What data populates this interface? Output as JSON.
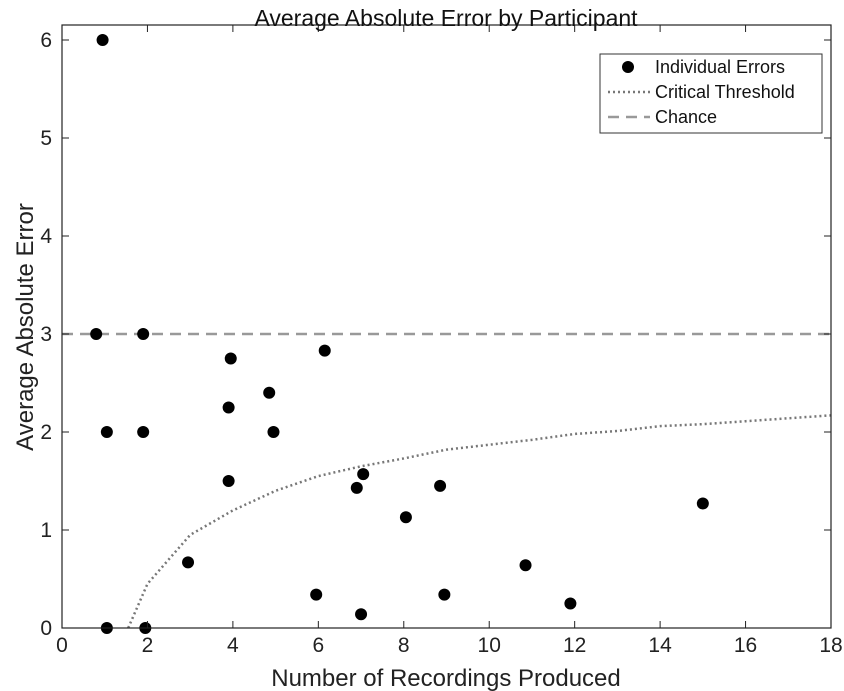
{
  "chart_data": {
    "type": "scatter",
    "title": "Average Absolute Error by Participant",
    "xlabel": "Number of Recordings Produced",
    "ylabel": "Average Absolute Error",
    "xlim": [
      0,
      18
    ],
    "ylim": [
      0,
      6
    ],
    "xticks": [
      0,
      2,
      4,
      6,
      8,
      10,
      12,
      14,
      16,
      18
    ],
    "yticks": [
      0,
      1,
      2,
      3,
      4,
      5,
      6
    ],
    "grid": false,
    "legend_position": "top-right",
    "series": [
      {
        "name": "Individual Errors",
        "style": "scatter",
        "color": "#000000",
        "points": [
          {
            "x": 0.95,
            "y": 6.0
          },
          {
            "x": 0.8,
            "y": 3.0
          },
          {
            "x": 1.9,
            "y": 3.0
          },
          {
            "x": 1.05,
            "y": 2.0
          },
          {
            "x": 1.9,
            "y": 2.0
          },
          {
            "x": 1.05,
            "y": 0.0
          },
          {
            "x": 1.95,
            "y": 0.0
          },
          {
            "x": 3.95,
            "y": 2.75
          },
          {
            "x": 3.9,
            "y": 2.25
          },
          {
            "x": 3.9,
            "y": 1.5
          },
          {
            "x": 2.95,
            "y": 0.67
          },
          {
            "x": 4.85,
            "y": 2.4
          },
          {
            "x": 4.95,
            "y": 2.0
          },
          {
            "x": 6.15,
            "y": 2.83
          },
          {
            "x": 5.95,
            "y": 0.34
          },
          {
            "x": 6.9,
            "y": 1.43
          },
          {
            "x": 7.05,
            "y": 1.57
          },
          {
            "x": 7.0,
            "y": 0.14
          },
          {
            "x": 8.05,
            "y": 1.13
          },
          {
            "x": 8.85,
            "y": 1.45
          },
          {
            "x": 8.95,
            "y": 0.34
          },
          {
            "x": 10.85,
            "y": 0.64
          },
          {
            "x": 11.9,
            "y": 0.25
          },
          {
            "x": 15.0,
            "y": 1.27
          }
        ]
      },
      {
        "name": "Critical Threshold",
        "style": "dotted-line",
        "color": "#777777",
        "points": [
          {
            "x": 1.55,
            "y": 0.0
          },
          {
            "x": 2.0,
            "y": 0.45
          },
          {
            "x": 3.0,
            "y": 0.95
          },
          {
            "x": 4.0,
            "y": 1.2
          },
          {
            "x": 5.0,
            "y": 1.4
          },
          {
            "x": 6.0,
            "y": 1.55
          },
          {
            "x": 7.0,
            "y": 1.65
          },
          {
            "x": 8.0,
            "y": 1.73
          },
          {
            "x": 9.0,
            "y": 1.82
          },
          {
            "x": 10.0,
            "y": 1.87
          },
          {
            "x": 11.0,
            "y": 1.92
          },
          {
            "x": 12.0,
            "y": 1.98
          },
          {
            "x": 13.0,
            "y": 2.01
          },
          {
            "x": 14.0,
            "y": 2.06
          },
          {
            "x": 15.0,
            "y": 2.08
          },
          {
            "x": 16.0,
            "y": 2.11
          },
          {
            "x": 17.0,
            "y": 2.14
          },
          {
            "x": 18.0,
            "y": 2.17
          }
        ]
      },
      {
        "name": "Chance",
        "style": "dashed-line",
        "color": "#999999",
        "points": [
          {
            "x": 0,
            "y": 3
          },
          {
            "x": 18,
            "y": 3
          }
        ]
      }
    ]
  }
}
